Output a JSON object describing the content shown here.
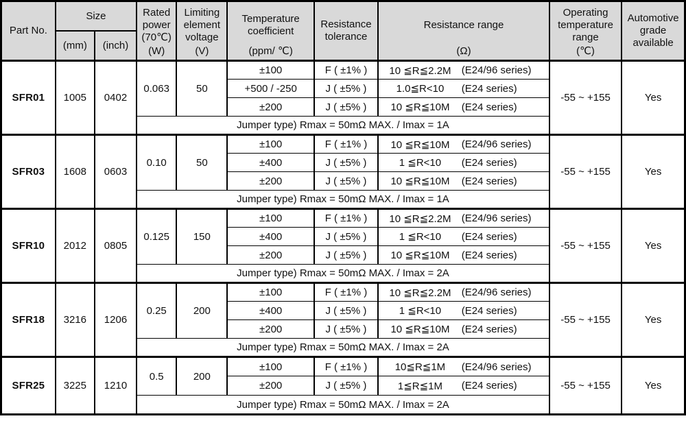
{
  "header": {
    "part_no": "Part No.",
    "size": "Size",
    "size_mm": "(mm)",
    "size_inch": "(inch)",
    "rated_power": "Rated power (70℃)",
    "rated_power_unit": "(W)",
    "limiting_voltage": "Limiting element voltage",
    "limiting_voltage_unit": "(V)",
    "temp_coeff": "Temperature coefficient",
    "temp_coeff_unit": "(ppm/ ℃)",
    "tolerance": "Resistance tolerance",
    "res_range": "Resistance range",
    "res_range_unit": "(Ω)",
    "op_temp": "Operating temperature range",
    "op_temp_unit": "(℃)",
    "automotive": "Automotive grade available"
  },
  "colors": {
    "header_bg": "#d9d9d9",
    "border": "#000000",
    "cell_bg": "#ffffff"
  },
  "blocks": [
    {
      "part_no": "SFR01",
      "size_mm": "1005",
      "size_inch": "0402",
      "rated_power": "0.063",
      "voltage": "50",
      "rows": [
        {
          "tc": "±100",
          "tol": "F ( ±1% )",
          "range": "10 ≦R≦2.2M",
          "series": "(E24/96 series)"
        },
        {
          "tc": "+500 / -250",
          "tol": "J ( ±5% )",
          "range": "1.0≦R<10",
          "series": "(E24 series)"
        },
        {
          "tc": "±200",
          "tol": "J ( ±5% )",
          "range": "10 ≦R≦10M",
          "series": "(E24 series)"
        }
      ],
      "jumper": "Jumper type) Rmax = 50mΩ MAX. / Imax = 1A",
      "op_temp": "-55 ~ +155",
      "automotive": "Yes"
    },
    {
      "part_no": "SFR03",
      "size_mm": "1608",
      "size_inch": "0603",
      "rated_power": "0.10",
      "voltage": "50",
      "rows": [
        {
          "tc": "±100",
          "tol": "F ( ±1% )",
          "range": "10 ≦R≦10M",
          "series": "(E24/96 series)"
        },
        {
          "tc": "±400",
          "tol": "J ( ±5% )",
          "range": "1 ≦R<10",
          "series": "(E24 series)"
        },
        {
          "tc": "±200",
          "tol": "J ( ±5% )",
          "range": "10 ≦R≦10M",
          "series": "(E24 series)"
        }
      ],
      "jumper": "Jumper type) Rmax = 50mΩ MAX. / Imax = 1A",
      "op_temp": "-55 ~ +155",
      "automotive": "Yes"
    },
    {
      "part_no": "SFR10",
      "size_mm": "2012",
      "size_inch": "0805",
      "rated_power": "0.125",
      "voltage": "150",
      "rows": [
        {
          "tc": "±100",
          "tol": "F ( ±1% )",
          "range": "10 ≦R≦2.2M",
          "series": "(E24/96 series)"
        },
        {
          "tc": "±400",
          "tol": "J ( ±5% )",
          "range": "1 ≦R<10",
          "series": "(E24 series)"
        },
        {
          "tc": "±200",
          "tol": "J ( ±5% )",
          "range": "10 ≦R≦10M",
          "series": "(E24 series)"
        }
      ],
      "jumper": "Jumper type) Rmax = 50mΩ MAX. / Imax = 2A",
      "op_temp": "-55 ~ +155",
      "automotive": "Yes"
    },
    {
      "part_no": "SFR18",
      "size_mm": "3216",
      "size_inch": "1206",
      "rated_power": "0.25",
      "voltage": "200",
      "rows": [
        {
          "tc": "±100",
          "tol": "F ( ±1% )",
          "range": "10 ≦R≦2.2M",
          "series": "(E24/96 series)"
        },
        {
          "tc": "±400",
          "tol": "J ( ±5% )",
          "range": "1 ≦R<10",
          "series": "(E24 series)"
        },
        {
          "tc": "±200",
          "tol": "J ( ±5% )",
          "range": "10 ≦R≦10M",
          "series": "(E24 series)"
        }
      ],
      "jumper": "Jumper type) Rmax = 50mΩ MAX. / Imax = 2A",
      "op_temp": "-55 ~ +155",
      "automotive": "Yes"
    },
    {
      "part_no": "SFR25",
      "size_mm": "3225",
      "size_inch": "1210",
      "rated_power": "0.5",
      "voltage": "200",
      "rows": [
        {
          "tc": "±100",
          "tol": "F ( ±1% )",
          "range": "10≦R≦1M",
          "series": "(E24/96 series)"
        },
        {
          "tc": "±200",
          "tol": "J ( ±5% )",
          "range": "1≦R≦1M",
          "series": "(E24 series)"
        }
      ],
      "jumper": "Jumper type) Rmax = 50mΩ MAX. / Imax = 2A",
      "op_temp": "-55 ~ +155",
      "automotive": "Yes"
    }
  ]
}
